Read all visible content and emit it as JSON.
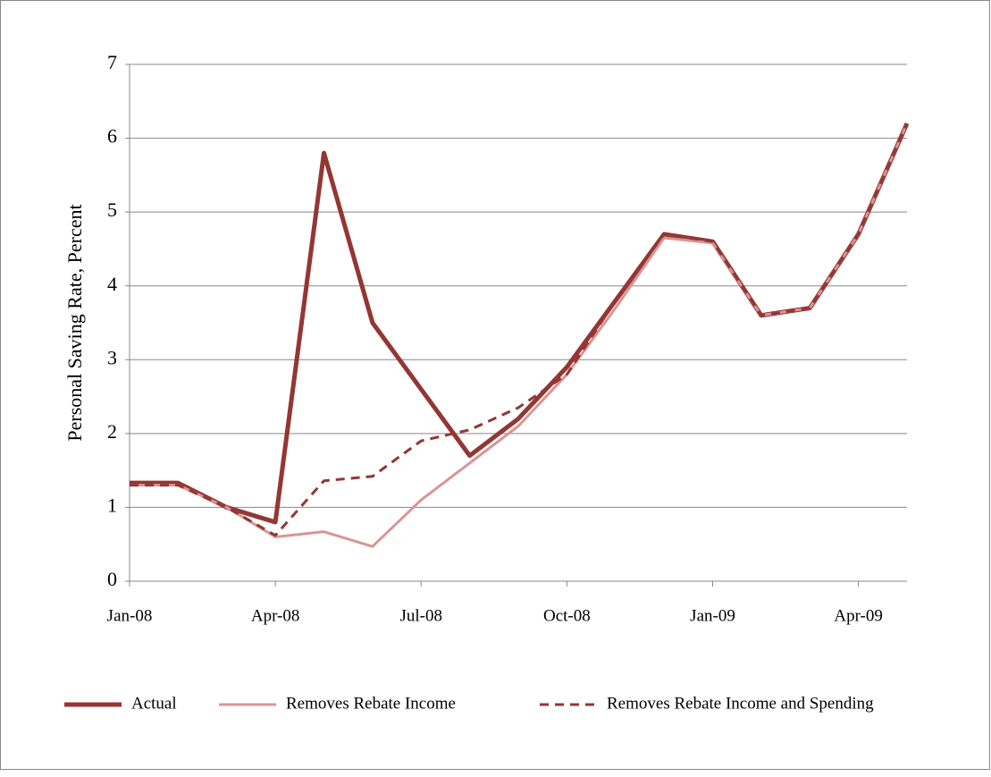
{
  "chart_data": {
    "type": "line",
    "y_label": "Personal Saving Rate, Percent",
    "categories": [
      "Jan-08",
      null,
      null,
      "Apr-08",
      null,
      null,
      "Jul-08",
      null,
      null,
      "Oct-08",
      null,
      null,
      "Jan-09",
      null,
      null,
      "Apr-09",
      null
    ],
    "series": [
      {
        "name": "Actual",
        "color": "#943634",
        "dash": false,
        "width": 5,
        "values": [
          1.33,
          1.33,
          1.0,
          0.8,
          5.8,
          3.5,
          2.6,
          1.7,
          2.2,
          2.9,
          3.8,
          4.7,
          4.6,
          3.6,
          3.7,
          4.7,
          6.2
        ]
      },
      {
        "name": "Removes Rebate Income",
        "color": "#d99594",
        "dash": false,
        "width": 3,
        "values": [
          1.3,
          1.3,
          1.0,
          0.6,
          0.67,
          0.47,
          1.1,
          1.6,
          2.1,
          2.8,
          3.7,
          4.65,
          4.58,
          3.6,
          3.7,
          4.7,
          6.2
        ]
      },
      {
        "name": "Removes Rebate Income and Spending",
        "color": "#943634",
        "dash": true,
        "width": 3,
        "values": [
          1.3,
          1.3,
          1.0,
          0.62,
          1.36,
          1.42,
          1.9,
          2.05,
          2.35,
          2.8,
          3.8,
          4.7,
          4.6,
          3.6,
          3.7,
          4.7,
          6.2
        ]
      }
    ],
    "ylim": [
      0,
      7
    ],
    "yticks": [
      0,
      1,
      2,
      3,
      4,
      5,
      6,
      7
    ],
    "grid": true,
    "legend": "bottom"
  }
}
